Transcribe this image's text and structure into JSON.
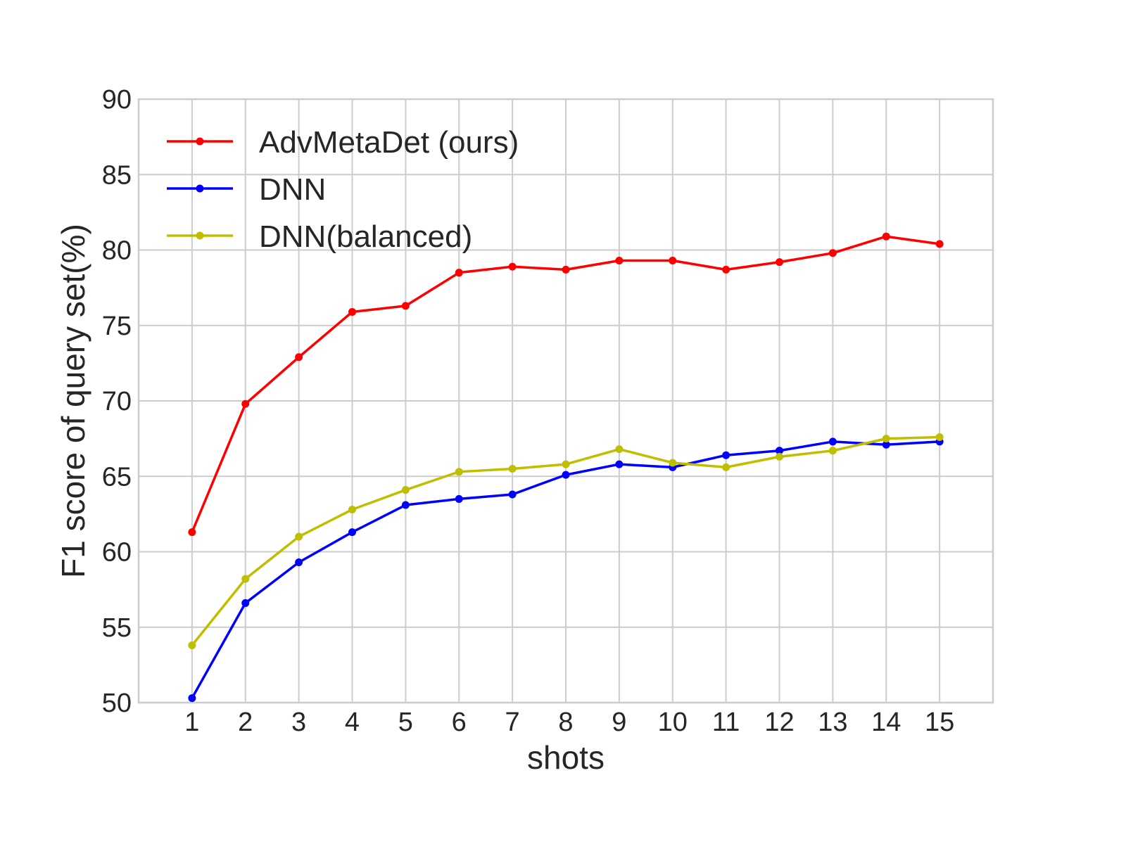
{
  "chart_data": {
    "type": "line",
    "title": "",
    "xlabel": "shots",
    "ylabel": "F1 score of query set(%)",
    "x": [
      1,
      2,
      3,
      4,
      5,
      6,
      7,
      8,
      9,
      10,
      11,
      12,
      13,
      14,
      15
    ],
    "xlim": [
      0,
      16
    ],
    "ylim": [
      50,
      90
    ],
    "yticks": [
      50,
      55,
      60,
      65,
      70,
      75,
      80,
      85,
      90
    ],
    "grid": true,
    "legend_position": "top-left",
    "series": [
      {
        "name": "AdvMetaDet (ours)",
        "color": "#ff0000",
        "marker": "circle",
        "values": [
          61.3,
          69.8,
          72.9,
          75.9,
          76.3,
          78.5,
          78.9,
          78.7,
          79.3,
          79.3,
          78.7,
          79.2,
          79.8,
          80.9,
          80.4
        ]
      },
      {
        "name": "DNN",
        "color": "#0000ff",
        "marker": "circle",
        "values": [
          50.3,
          56.6,
          59.3,
          61.3,
          63.1,
          63.5,
          63.8,
          65.1,
          65.8,
          65.6,
          66.4,
          66.7,
          67.3,
          67.1,
          67.3
        ]
      },
      {
        "name": "DNN(balanced)",
        "color": "#bfbf00",
        "marker": "circle",
        "values": [
          53.8,
          58.2,
          61.0,
          62.8,
          64.1,
          65.3,
          65.5,
          65.8,
          66.8,
          65.9,
          65.6,
          66.3,
          66.7,
          67.5,
          67.6
        ]
      }
    ]
  }
}
